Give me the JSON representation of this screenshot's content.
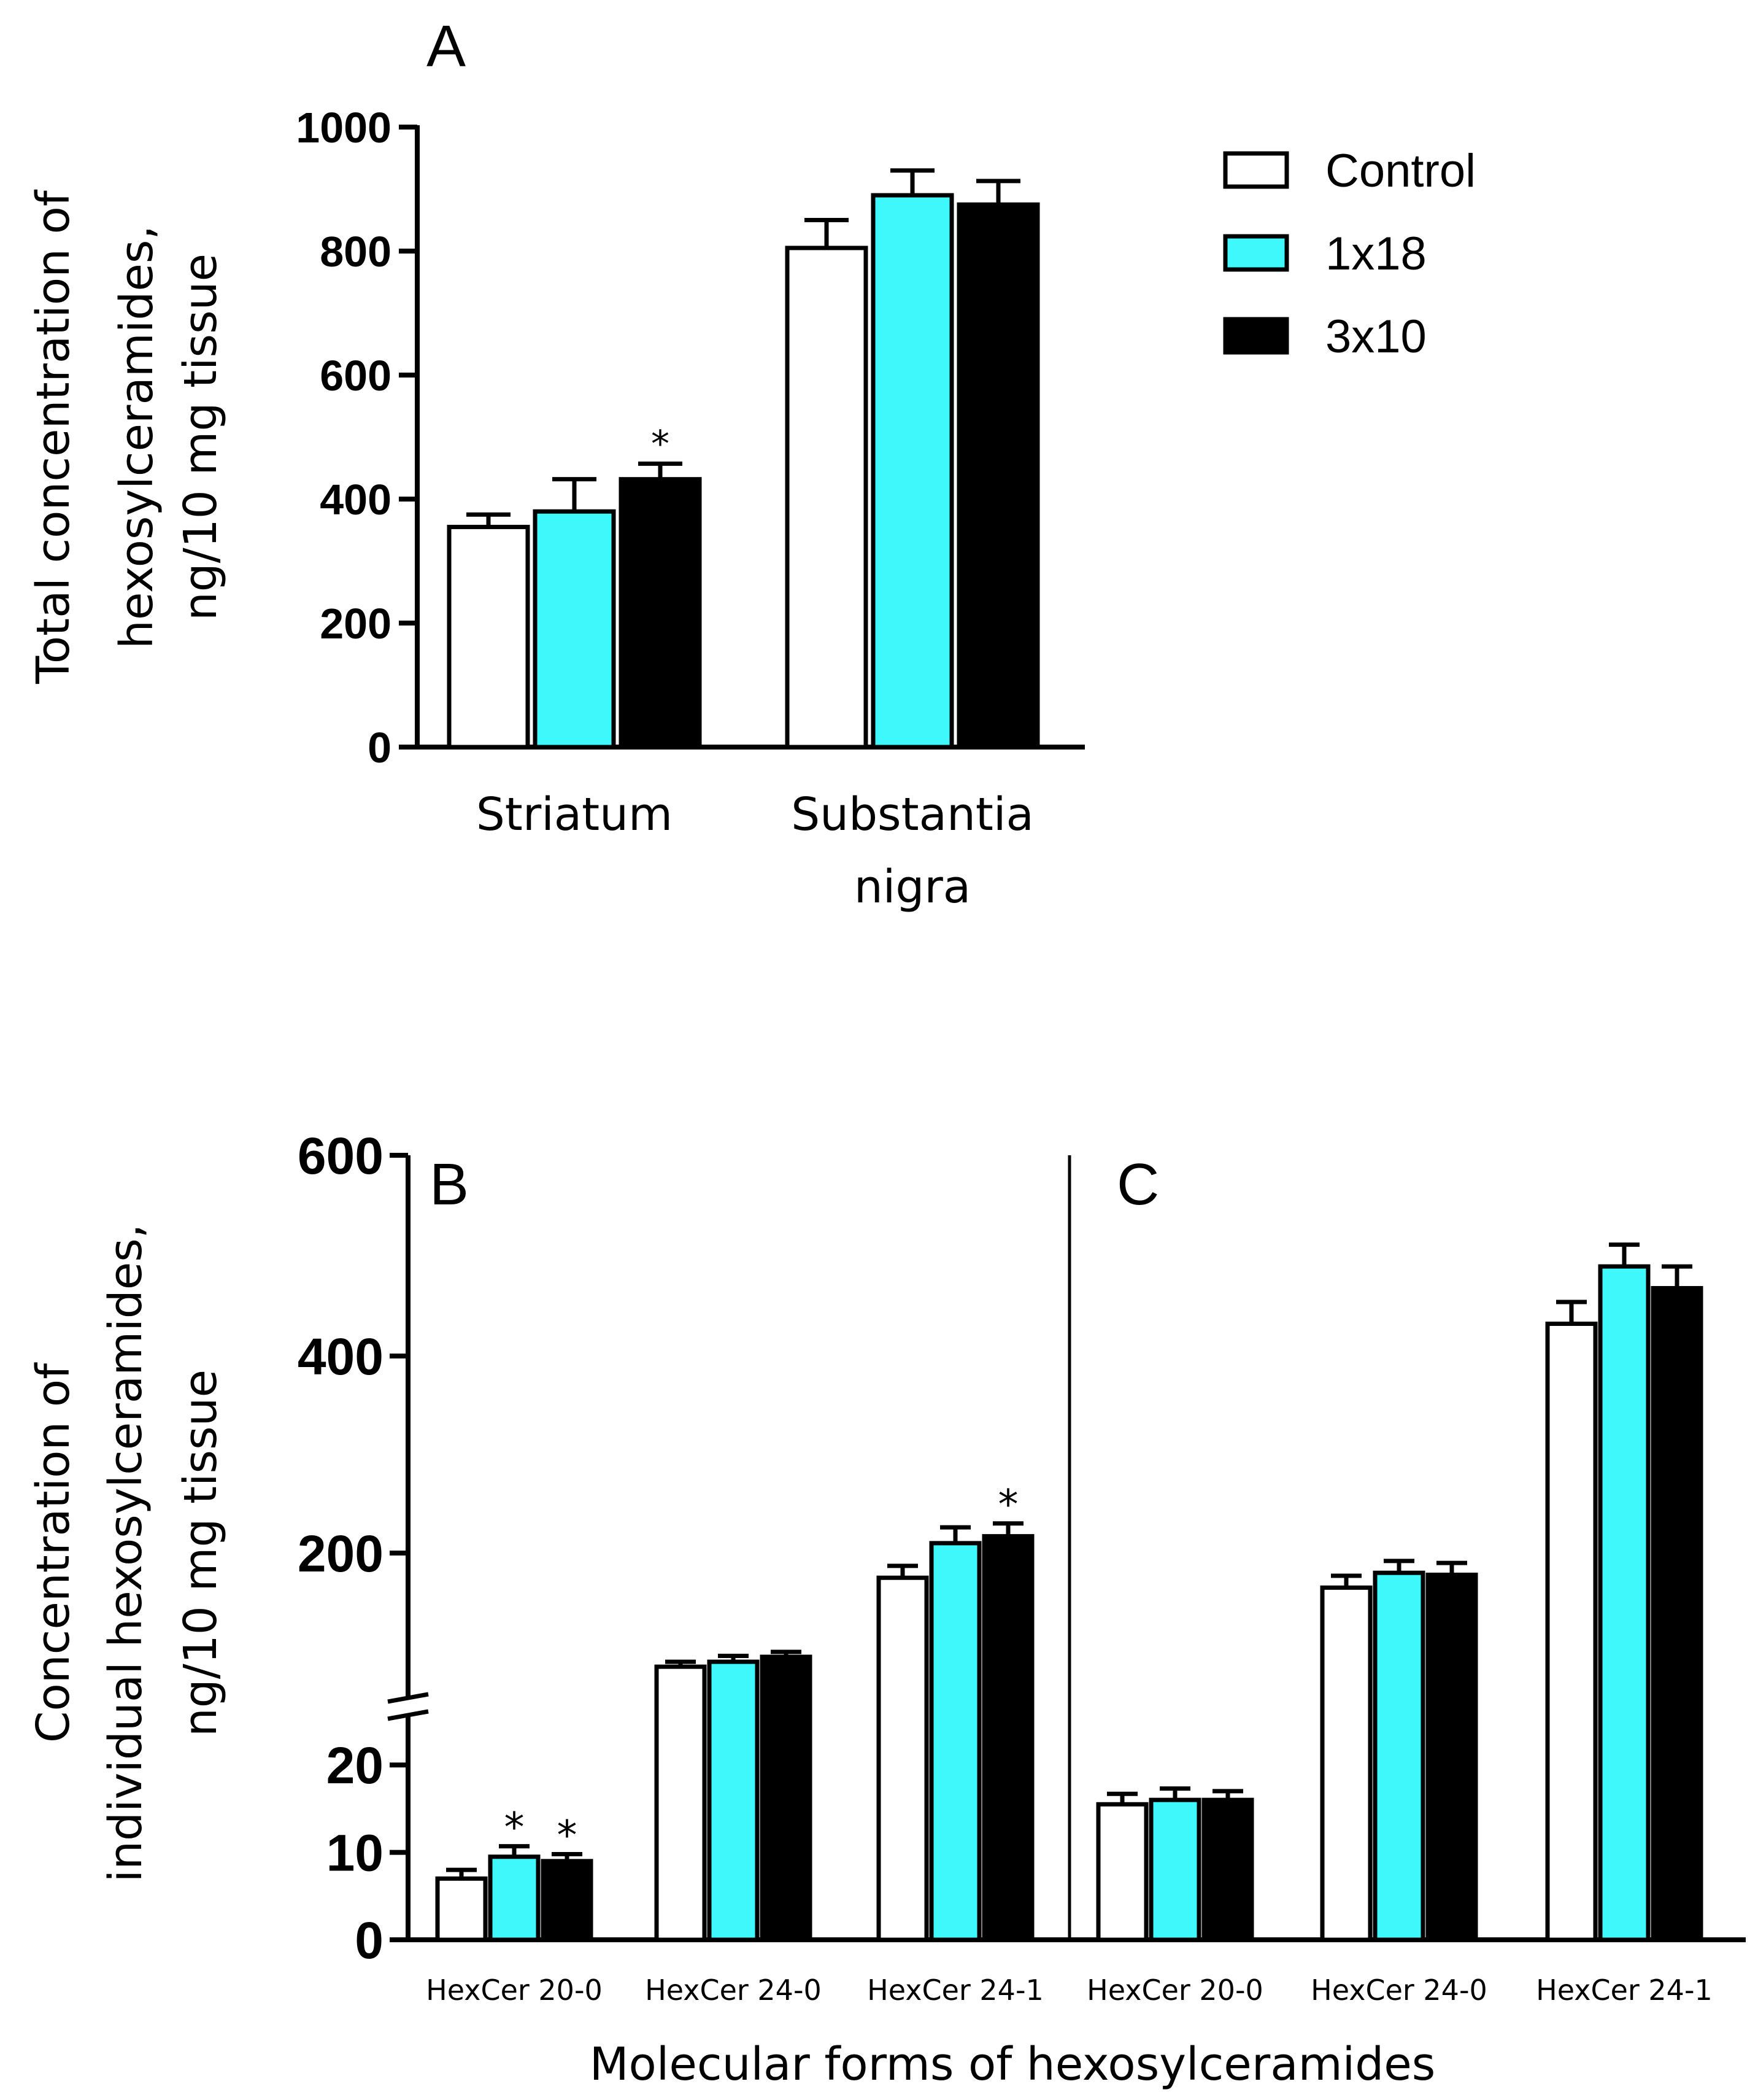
{
  "colors": {
    "control": "#ffffff",
    "group_1x18": "#3ff8fb",
    "group_3x10": "#000000",
    "axis": "#000000"
  },
  "legend": {
    "items": [
      {
        "label": "Control",
        "color": "#ffffff"
      },
      {
        "label": "1x18",
        "color": "#3ff8fb"
      },
      {
        "label": "3x10",
        "color": "#000000"
      }
    ]
  },
  "chart_data": [
    {
      "panel": "A",
      "type": "bar",
      "ylabel_lines": [
        "Total concentration of",
        "hexosylceramides,",
        "ng/10 mg tissue"
      ],
      "ylim": [
        0,
        1000
      ],
      "yticks": [
        0,
        200,
        400,
        600,
        800,
        1000
      ],
      "categories": [
        {
          "lines": [
            "Striatum"
          ]
        },
        {
          "lines": [
            "Substantia",
            "nigra"
          ]
        }
      ],
      "series": [
        {
          "name": "Control",
          "values": [
            355,
            805
          ],
          "errors": [
            20,
            45
          ]
        },
        {
          "name": "1x18",
          "values": [
            380,
            890
          ],
          "errors": [
            52,
            40
          ]
        },
        {
          "name": "3x10",
          "values": [
            432,
            875
          ],
          "errors": [
            25,
            38
          ]
        }
      ],
      "significance": [
        {
          "series": "3x10",
          "category": 0,
          "mark": "*"
        }
      ]
    },
    {
      "panel": "B",
      "type": "bar",
      "ylabel_lines": [
        "Concentration of",
        "individual hexosylceramides,",
        "ng/10 mg tissue"
      ],
      "xlabel": "Molecular forms of hexosylceramides",
      "axis_break": {
        "lower": [
          0,
          25
        ],
        "upper": [
          60,
          600
        ]
      },
      "yticks_lower": [
        0,
        10,
        20
      ],
      "yticks_upper": [
        200,
        400,
        600
      ],
      "categories": [
        "HexCer 20-0",
        "HexCer 24-0",
        "HexCer 24-1"
      ],
      "series": [
        {
          "name": "Control",
          "values": [
            7,
            85,
            175
          ],
          "errors": [
            1,
            5,
            12
          ]
        },
        {
          "name": "1x18",
          "values": [
            9.5,
            90,
            210
          ],
          "errors": [
            1.2,
            6,
            16
          ]
        },
        {
          "name": "3x10",
          "values": [
            9,
            95,
            217
          ],
          "errors": [
            0.8,
            5,
            13
          ]
        }
      ],
      "significance": [
        {
          "series": "1x18",
          "category": 0,
          "mark": "*"
        },
        {
          "series": "3x10",
          "category": 0,
          "mark": "*"
        },
        {
          "series": "3x10",
          "category": 2,
          "mark": "*"
        }
      ]
    },
    {
      "panel": "C",
      "type": "bar",
      "xlabel": "Molecular forms of hexosylceramides",
      "axis_break": {
        "lower": [
          0,
          25
        ],
        "upper": [
          60,
          600
        ]
      },
      "categories": [
        "HexCer 20-0",
        "HexCer 24-0",
        "HexCer 24-1"
      ],
      "series": [
        {
          "name": "Control",
          "values": [
            15.5,
            165,
            432
          ],
          "errors": [
            1.2,
            12,
            22
          ]
        },
        {
          "name": "1x18",
          "values": [
            16,
            180,
            490
          ],
          "errors": [
            1.3,
            12,
            22
          ]
        },
        {
          "name": "3x10",
          "values": [
            16,
            178,
            468
          ],
          "errors": [
            1.0,
            12,
            22
          ]
        }
      ],
      "significance": []
    }
  ]
}
